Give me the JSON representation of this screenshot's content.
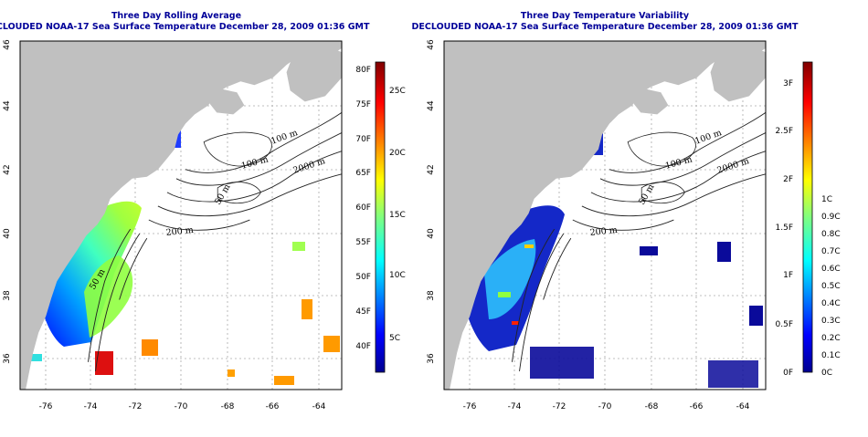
{
  "panels": [
    {
      "title": "Three Day Rolling Average",
      "subtitle": "DECLOUDED NOAA-17 Sea Surface Temperature December 28, 2009 01:36 GMT",
      "colorbar_f_labels": [
        "40F",
        "45F",
        "50F",
        "55F",
        "60F",
        "65F",
        "70F",
        "75F",
        "80F"
      ],
      "colorbar_c_labels": [
        "5C",
        "10C",
        "15C",
        "20C",
        "25C"
      ]
    },
    {
      "title": "Three Day Temperature Variability",
      "subtitle": "DECLOUDED NOAA-17 Sea Surface Temperature December 28, 2009 01:36 GMT",
      "colorbar_f_labels": [
        "0F",
        "0.5F",
        "1F",
        "1.5F",
        "2F",
        "2.5F",
        "3F"
      ],
      "colorbar_c_labels": [
        "0C",
        "0.1C",
        "0.2C",
        "0.3C",
        "0.4C",
        "0.5C",
        "0.6C",
        "0.7C",
        "0.8C",
        "0.9C",
        "1C"
      ]
    }
  ],
  "lon_labels": [
    "-76",
    "-74",
    "-72",
    "-70",
    "-68",
    "-66",
    "-64"
  ],
  "lat_labels": [
    "36",
    "38",
    "40",
    "42",
    "44",
    "46"
  ],
  "isobath_labels": [
    "100 m",
    "2000 m",
    "100 m",
    "50 m",
    "200 m",
    "50 m"
  ],
  "colors": {
    "land": "#c0c0c0",
    "title": "#000099",
    "grid": "#aaaaaa"
  }
}
